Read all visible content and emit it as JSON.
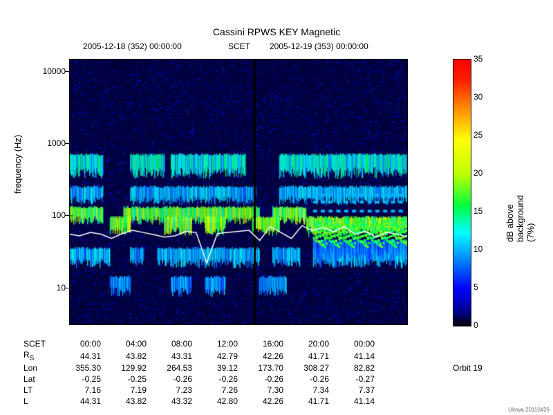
{
  "title": "Cassini RPWS KEY Magnetic",
  "subtitle_left": "2005-12-18 (352) 00:00:00",
  "subtitle_mid": "SCET",
  "subtitle_right": "2005-12-19 (353) 00:00:00",
  "orbit_label": "Orbit 19",
  "footer": "UIowa 20110426",
  "ylabel": "frequency (Hz)",
  "cbar_label": "dB above background (7%)",
  "y_axis": {
    "scale": "log",
    "min": 3,
    "max": 15000,
    "ticks": [
      10,
      100,
      1000,
      10000
    ],
    "tick_labels": [
      "10",
      "100",
      "1000",
      "10000"
    ]
  },
  "x_axis": {
    "ticks": [
      "00:00",
      "04:00",
      "08:00",
      "12:00",
      "16:00",
      "20:00",
      "00:00"
    ]
  },
  "colorbar": {
    "min": 0,
    "max": 35,
    "step": 5,
    "gradient_stops": [
      {
        "p": 0.0,
        "c": "#000000"
      },
      {
        "p": 0.05,
        "c": "#000088"
      },
      {
        "p": 0.14,
        "c": "#0000ff"
      },
      {
        "p": 0.25,
        "c": "#0088ff"
      },
      {
        "p": 0.35,
        "c": "#00ffff"
      },
      {
        "p": 0.45,
        "c": "#00ff40"
      },
      {
        "p": 0.57,
        "c": "#c0ff00"
      },
      {
        "p": 0.7,
        "c": "#ffff00"
      },
      {
        "p": 0.82,
        "c": "#ff8800"
      },
      {
        "p": 0.92,
        "c": "#ff2000"
      },
      {
        "p": 1.0,
        "c": "#ff0000"
      }
    ]
  },
  "ephemeris": {
    "rows": [
      "SCET",
      "R<sub>S</sub>",
      "Lon",
      "Lat",
      "LT",
      "L"
    ],
    "row_plain": [
      "SCET",
      "Rs",
      "Lon",
      "Lat",
      "LT",
      "L"
    ],
    "cols": [
      [
        "00:00",
        "44.31",
        "355.30",
        "-0.25",
        "7.16",
        "44.31"
      ],
      [
        "04:00",
        "43.82",
        "129.92",
        "-0.25",
        "7.19",
        "43.82"
      ],
      [
        "08:00",
        "43.31",
        "264.53",
        "-0.26",
        "7.23",
        "43.32"
      ],
      [
        "12:00",
        "42.79",
        "39.12",
        "-0.26",
        "7.26",
        "42.80"
      ],
      [
        "16:00",
        "42.26",
        "173.70",
        "-0.26",
        "7.30",
        "42.26"
      ],
      [
        "20:00",
        "41.71",
        "308.27",
        "-0.26",
        "7.34",
        "41.71"
      ],
      [
        "00:00",
        "41.14",
        "82.82",
        "-0.27",
        "7.37",
        "41.14"
      ]
    ]
  },
  "spectrogram": {
    "bg_color": "#000040",
    "noise_colors": [
      "#000030",
      "#000050",
      "#0000a0",
      "#000070",
      "#001060"
    ],
    "overlay_line": {
      "color": "#ffffff",
      "width": 1.5,
      "freq_hz": [
        55,
        52,
        58,
        55,
        48,
        56,
        62,
        58,
        54,
        50,
        52,
        60,
        58,
        22,
        56,
        58,
        60,
        62,
        45,
        70,
        58,
        48,
        72,
        62,
        68,
        60,
        70,
        55,
        60,
        50,
        58,
        55,
        50
      ],
      "n": 33
    },
    "bands": [
      {
        "f_lo": 350,
        "f_hi": 700,
        "intensity": 12,
        "segments": [
          [
            0.0,
            0.1
          ],
          [
            0.18,
            0.28
          ],
          [
            0.3,
            0.52
          ],
          [
            0.62,
            1.0
          ]
        ]
      },
      {
        "f_lo": 150,
        "f_hi": 250,
        "intensity": 10,
        "segments": [
          [
            0.0,
            0.1
          ],
          [
            0.18,
            0.55
          ],
          [
            0.62,
            1.0
          ]
        ]
      },
      {
        "f_lo": 80,
        "f_hi": 130,
        "intensity": 17,
        "segments": [
          [
            0.0,
            0.1
          ],
          [
            0.16,
            0.56
          ],
          [
            0.6,
            0.7
          ]
        ]
      },
      {
        "f_lo": 55,
        "f_hi": 95,
        "intensity": 18,
        "segments": [
          [
            0.12,
            0.18
          ],
          [
            0.28,
            0.36
          ],
          [
            0.4,
            0.46
          ],
          [
            0.54,
            0.62
          ],
          [
            0.7,
            1.0
          ]
        ]
      },
      {
        "f_lo": 20,
        "f_hi": 35,
        "intensity": 10,
        "segments": [
          [
            0.0,
            0.12
          ],
          [
            0.18,
            0.22
          ],
          [
            0.26,
            0.56
          ],
          [
            0.6,
            0.68
          ],
          [
            0.72,
            1.0
          ]
        ]
      },
      {
        "f_lo": 8,
        "f_hi": 14,
        "intensity": 9,
        "segments": [
          [
            0.12,
            0.18
          ],
          [
            0.3,
            0.36
          ],
          [
            0.4,
            0.46
          ],
          [
            0.56,
            0.64
          ]
        ]
      },
      {
        "f_lo": 25,
        "f_hi": 45,
        "intensity": 8,
        "segments": [
          [
            0.72,
            1.0
          ]
        ]
      }
    ],
    "vertical_gap": {
      "x": 0.545,
      "w": 0.006,
      "color": "#000000"
    }
  }
}
